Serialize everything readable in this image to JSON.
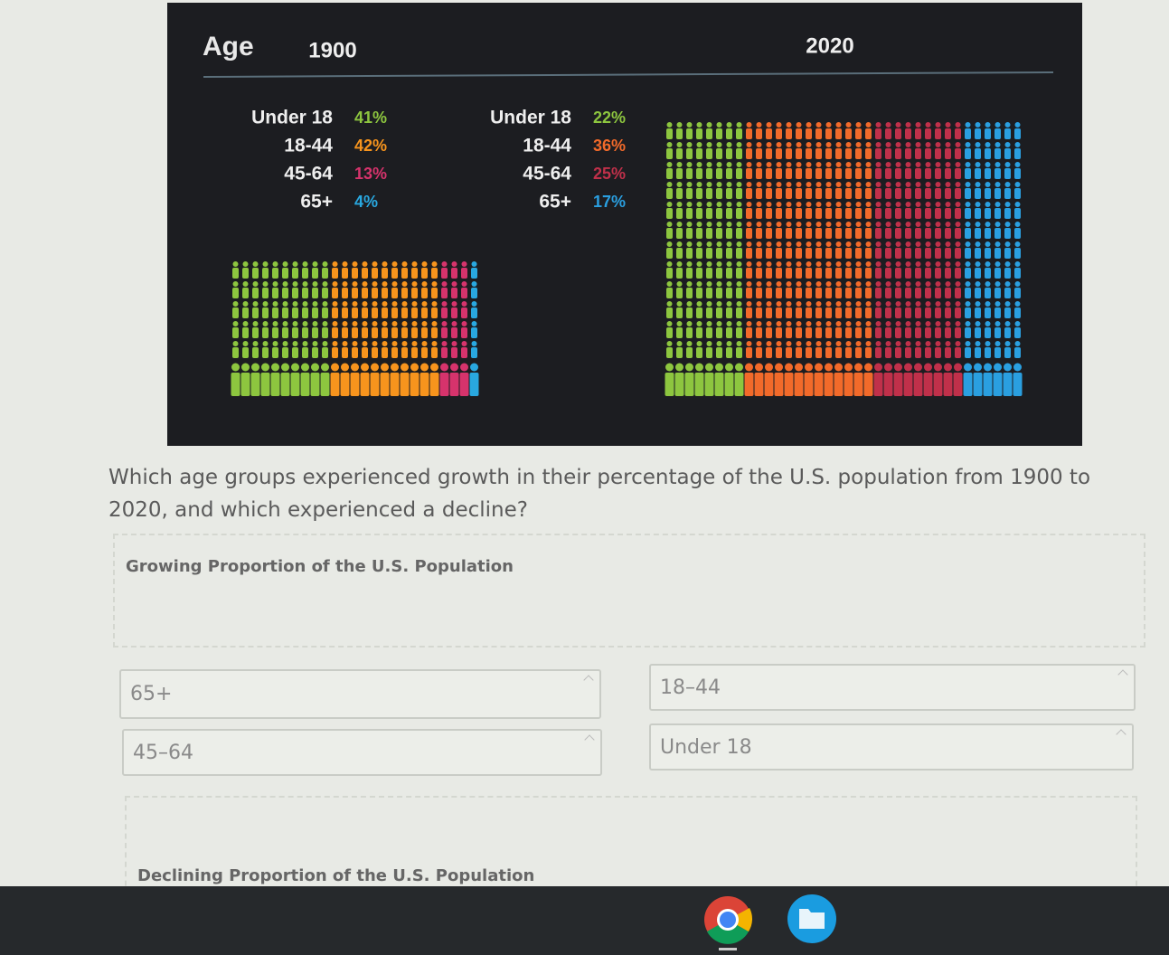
{
  "infographic": {
    "title": "Age",
    "panels": [
      {
        "year": "1900",
        "groups": [
          {
            "label": "Under 18",
            "percent": "41%",
            "color": "#8dc63f"
          },
          {
            "label": "18-44",
            "percent": "42%",
            "color": "#f7941d"
          },
          {
            "label": "45-64",
            "percent": "13%",
            "color": "#d6336c"
          },
          {
            "label": "65+",
            "percent": "4%",
            "color": "#29a8e0"
          }
        ]
      },
      {
        "year": "2020",
        "groups": [
          {
            "label": "Under 18",
            "percent": "22%",
            "color": "#8dc63f"
          },
          {
            "label": "18-44",
            "percent": "36%",
            "color": "#f26a2a"
          },
          {
            "label": "45-64",
            "percent": "25%",
            "color": "#c0304a"
          },
          {
            "label": "65+",
            "percent": "17%",
            "color": "#2a9fe0"
          }
        ]
      }
    ]
  },
  "question": "Which age groups experienced growth in their percentage of the U.S. population from 1900 to 2020, and which experienced a decline?",
  "drop_zones": [
    "Growing Proportion of the U.S. Population",
    "Declining Proportion of the U.S. Population"
  ],
  "options": [
    "65+",
    "18–44",
    "45–64",
    "Under 18"
  ]
}
